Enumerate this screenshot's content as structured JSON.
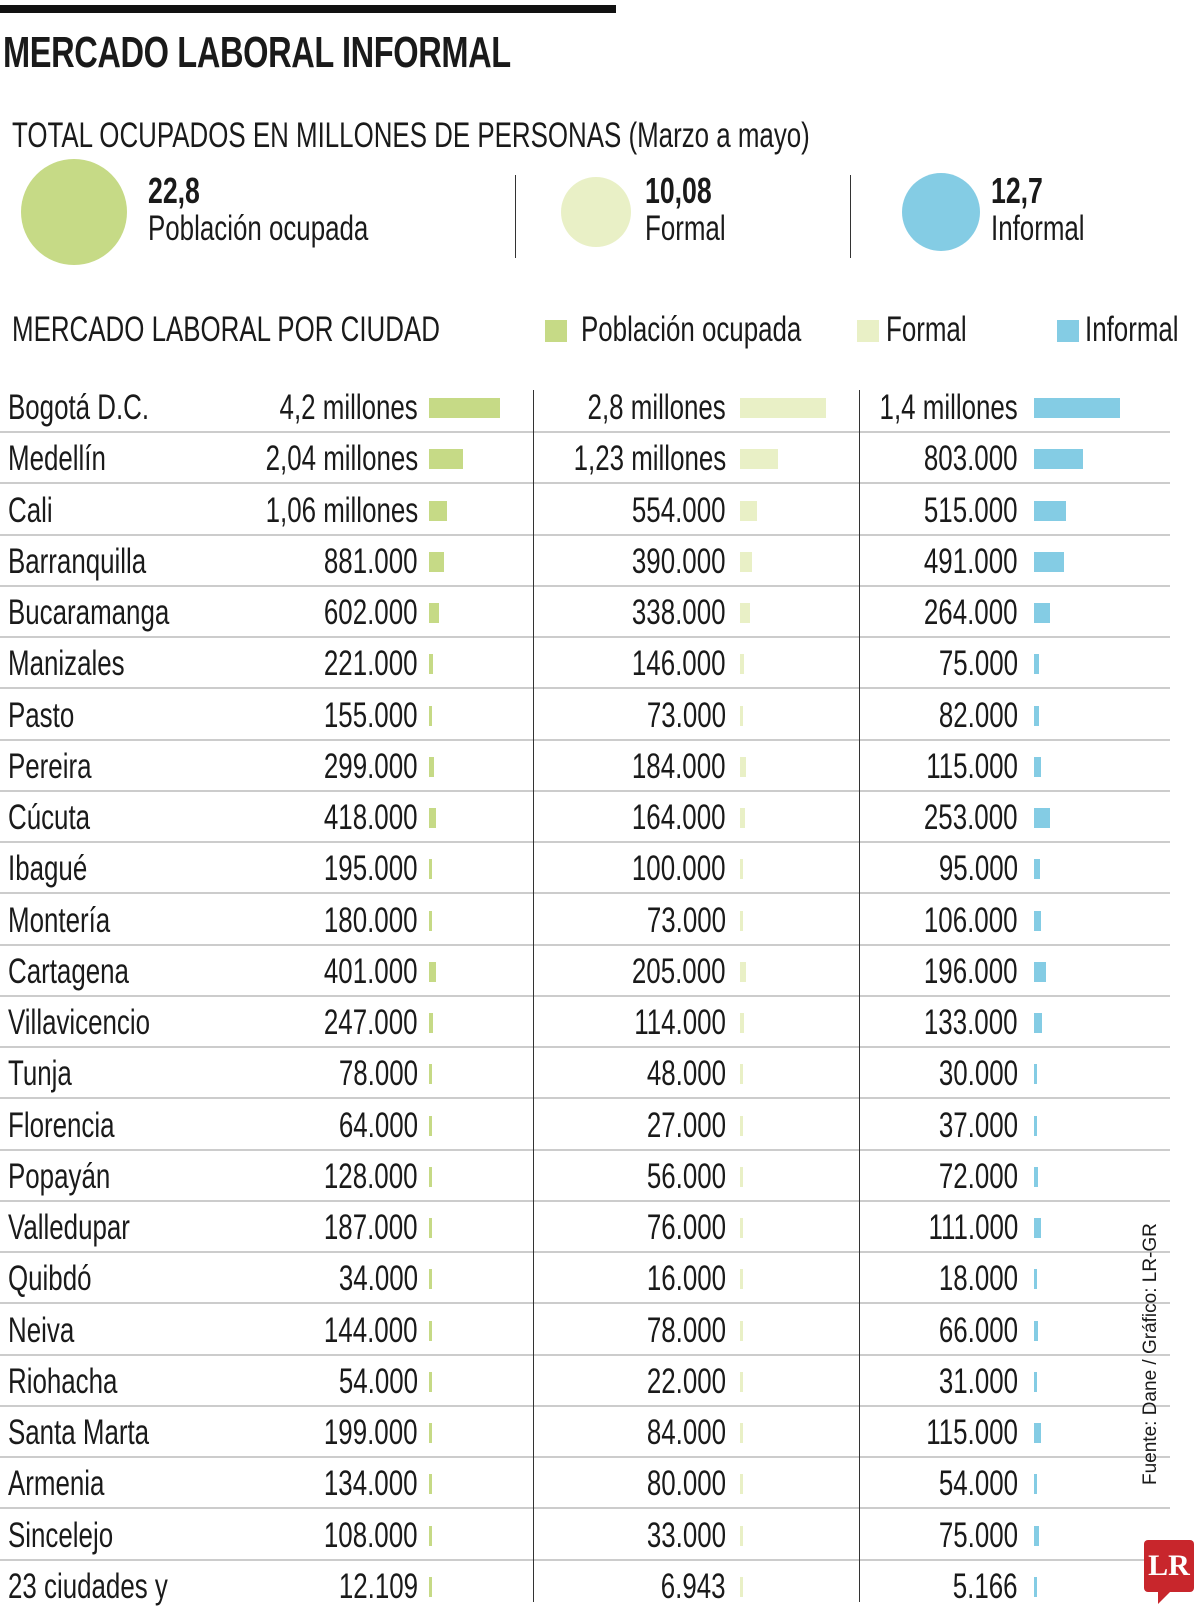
{
  "title": "MERCADO LABORAL INFORMAL",
  "subtitle": "TOTAL OCUPADOS EN MILLONES DE PERSONAS (Marzo a mayo)",
  "totals": [
    {
      "value": "22,8",
      "label": "Población ocupada",
      "color": "#c6da86"
    },
    {
      "value": "10,08",
      "label": "Formal",
      "color": "#e9f0c6"
    },
    {
      "value": "12,7",
      "label": "Informal",
      "color": "#84cce4"
    }
  ],
  "section_title": "MERCADO LABORAL POR CIUDAD",
  "legend": [
    {
      "label": "Población ocupada",
      "color": "#c6da86"
    },
    {
      "label": "Formal",
      "color": "#e9f0c6"
    },
    {
      "label": "Informal",
      "color": "#84cce4"
    }
  ],
  "source": "Fuente: Dane / Gráfico: LR-GR",
  "logo": "LR",
  "chart_data": {
    "type": "bar",
    "title": "MERCADO LABORAL POR CIUDAD",
    "series_names": [
      "Población ocupada",
      "Formal",
      "Informal"
    ],
    "rows": [
      {
        "city": "Bogotá D.C.",
        "labels": [
          "4,2 millones",
          "2,8 millones",
          "1,4 millones"
        ],
        "values": [
          4200000,
          2800000,
          1400000
        ]
      },
      {
        "city": "Medellín",
        "labels": [
          "2,04 millones",
          "1,23 millones",
          "803.000"
        ],
        "values": [
          2040000,
          1230000,
          803000
        ]
      },
      {
        "city": "Cali",
        "labels": [
          "1,06 millones",
          "554.000",
          "515.000"
        ],
        "values": [
          1060000,
          554000,
          515000
        ]
      },
      {
        "city": "Barranquilla",
        "labels": [
          "881.000",
          "390.000",
          "491.000"
        ],
        "values": [
          881000,
          390000,
          491000
        ]
      },
      {
        "city": "Bucaramanga",
        "labels": [
          "602.000",
          "338.000",
          "264.000"
        ],
        "values": [
          602000,
          338000,
          264000
        ]
      },
      {
        "city": "Manizales",
        "labels": [
          "221.000",
          "146.000",
          "75.000"
        ],
        "values": [
          221000,
          146000,
          75000
        ]
      },
      {
        "city": "Pasto",
        "labels": [
          "155.000",
          "73.000",
          "82.000"
        ],
        "values": [
          155000,
          73000,
          82000
        ]
      },
      {
        "city": "Pereira",
        "labels": [
          "299.000",
          "184.000",
          "115.000"
        ],
        "values": [
          299000,
          184000,
          115000
        ]
      },
      {
        "city": "Cúcuta",
        "labels": [
          "418.000",
          "164.000",
          "253.000"
        ],
        "values": [
          418000,
          164000,
          253000
        ]
      },
      {
        "city": "Ibagué",
        "labels": [
          "195.000",
          "100.000",
          "95.000"
        ],
        "values": [
          195000,
          100000,
          95000
        ]
      },
      {
        "city": "Montería",
        "labels": [
          "180.000",
          "73.000",
          "106.000"
        ],
        "values": [
          180000,
          73000,
          106000
        ]
      },
      {
        "city": "Cartagena",
        "labels": [
          "401.000",
          "205.000",
          "196.000"
        ],
        "values": [
          401000,
          205000,
          196000
        ]
      },
      {
        "city": "Villavicencio",
        "labels": [
          "247.000",
          "114.000",
          "133.000"
        ],
        "values": [
          247000,
          114000,
          133000
        ]
      },
      {
        "city": "Tunja",
        "labels": [
          "78.000",
          "48.000",
          "30.000"
        ],
        "values": [
          78000,
          48000,
          30000
        ]
      },
      {
        "city": "Florencia",
        "labels": [
          "64.000",
          "27.000",
          "37.000"
        ],
        "values": [
          64000,
          27000,
          37000
        ]
      },
      {
        "city": "Popayán",
        "labels": [
          "128.000",
          "56.000",
          "72.000"
        ],
        "values": [
          128000,
          56000,
          72000
        ]
      },
      {
        "city": "Valledupar",
        "labels": [
          "187.000",
          "76.000",
          "111.000"
        ],
        "values": [
          187000,
          76000,
          111000
        ]
      },
      {
        "city": "Quibdó",
        "labels": [
          "34.000",
          "16.000",
          "18.000"
        ],
        "values": [
          34000,
          16000,
          18000
        ]
      },
      {
        "city": "Neiva",
        "labels": [
          "144.000",
          "78.000",
          "66.000"
        ],
        "values": [
          144000,
          78000,
          66000
        ]
      },
      {
        "city": "Riohacha",
        "labels": [
          "54.000",
          "22.000",
          "31.000"
        ],
        "values": [
          54000,
          22000,
          31000
        ]
      },
      {
        "city": "Santa Marta",
        "labels": [
          "199.000",
          "84.000",
          "115.000"
        ],
        "values": [
          199000,
          84000,
          115000
        ]
      },
      {
        "city": "Armenia",
        "labels": [
          "134.000",
          "80.000",
          "54.000"
        ],
        "values": [
          134000,
          80000,
          54000
        ]
      },
      {
        "city": "Sincelejo",
        "labels": [
          "108.000",
          "33.000",
          "75.000"
        ],
        "values": [
          108000,
          33000,
          75000
        ]
      },
      {
        "city": "23 ciudades y",
        "labels": [
          "12.109",
          "6.943",
          "5.166"
        ],
        "values": [
          12109,
          6943,
          5166
        ]
      }
    ]
  }
}
